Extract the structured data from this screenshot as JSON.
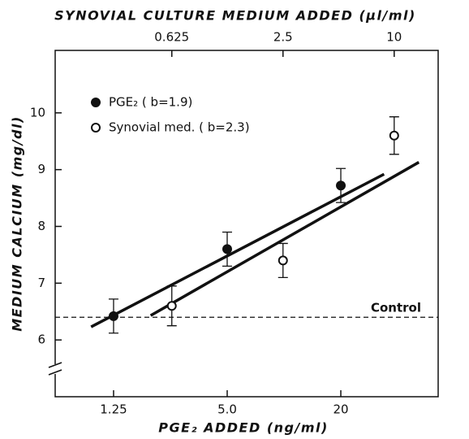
{
  "chart_data": {
    "type": "scatter",
    "title": "SYNOVIAL CULTURE MEDIUM ADDED (μl/ml)",
    "x_label": "PGE₂ ADDED (ng/ml)",
    "y_label": "MEDIUM CALCIUM (mg/dl)",
    "log_x": true,
    "xlim": [
      0.613,
      65.6
    ],
    "xticks": [
      1.25,
      {
        "value": 5,
        "label": "5.0"
      },
      20
    ],
    "x2lim": [
      0.146,
      17.3
    ],
    "x2ticks": [
      0.625,
      2.5,
      10
    ],
    "ylim": [
      5,
      11.1
    ],
    "yticks": [
      6,
      7,
      8,
      9,
      10
    ],
    "control": {
      "label": "Control",
      "value": 6.4
    },
    "series": [
      {
        "name": "PGE₂ ( b=1.9)",
        "color": "#111111",
        "filled": true,
        "axis": "x",
        "x": [
          1.25,
          5,
          20
        ],
        "values": [
          6.42,
          7.6,
          8.72
        ],
        "errors": [
          0.3,
          0.3,
          0.3
        ],
        "fit": {
          "x": [
            0.95,
            33.9
          ],
          "y": [
            6.23,
            8.92
          ]
        }
      },
      {
        "name": "Synovial med. ( b=2.3)",
        "color": "#111111",
        "filled": false,
        "axis": "x2",
        "x": [
          0.625,
          2.5,
          10
        ],
        "values": [
          6.6,
          7.4,
          9.6
        ],
        "errors": [
          0.35,
          0.3,
          0.33
        ],
        "fit": {
          "x": [
            0.48,
            13.6
          ],
          "y": [
            6.43,
            9.13
          ]
        }
      }
    ]
  }
}
